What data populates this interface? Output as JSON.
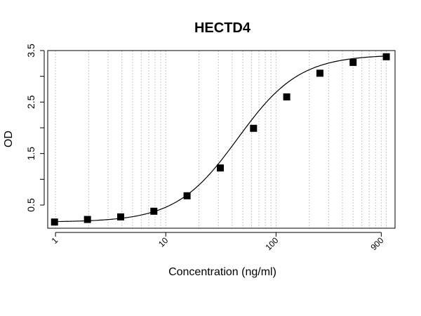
{
  "chart_data": {
    "type": "line",
    "title": "HECTD4",
    "xlabel": "Concentration (ng/ml)",
    "ylabel": "OD",
    "x_scale": "log",
    "xlim": [
      0.85,
      1200
    ],
    "ylim": [
      0.05,
      3.5
    ],
    "x_tick_labels": [
      {
        "value": 1,
        "label": "1"
      },
      {
        "value": 10,
        "label": "10"
      },
      {
        "value": 100,
        "label": "100"
      },
      {
        "value": 900,
        "label": "900"
      }
    ],
    "y_tick_labels": [
      {
        "value": 0.5,
        "label": "0.5"
      },
      {
        "value": 1.5,
        "label": "1.5"
      },
      {
        "value": 2.5,
        "label": "2.5"
      },
      {
        "value": 3.5,
        "label": "3.5"
      }
    ],
    "y_minor_ticks": [
      1.0,
      2.0,
      3.0
    ],
    "grid": "vertical dotted at log decades",
    "marker": "square",
    "series": [
      {
        "x": [
          0.98,
          1.95,
          3.9,
          7.8,
          15.6,
          31.25,
          62.5,
          125,
          250,
          500,
          1000
        ],
        "y": [
          0.17,
          0.22,
          0.27,
          0.38,
          0.68,
          1.22,
          1.99,
          2.6,
          3.06,
          3.27,
          3.38
        ]
      }
    ],
    "fit_curve": {
      "model": "4PL",
      "bottom": 0.17,
      "top": 3.42,
      "ec50": 45,
      "hill": 1.55
    }
  }
}
